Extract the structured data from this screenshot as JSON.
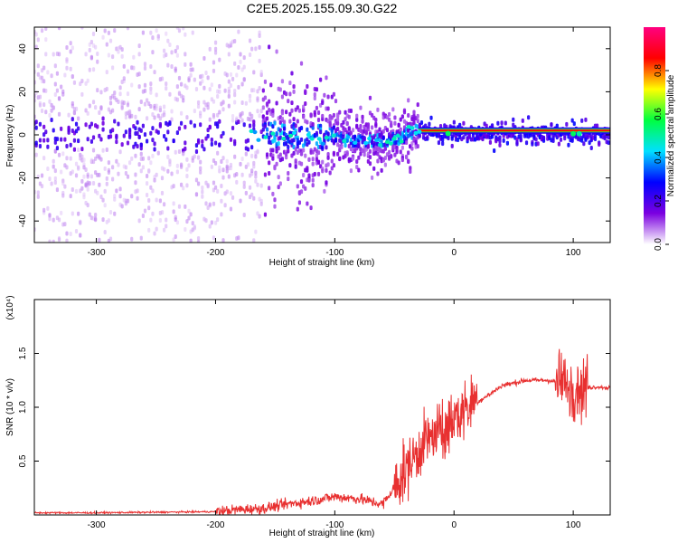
{
  "title": "C2E5.2025.155.09.30.G22",
  "colorbar": {
    "label": "Normalized spectral amplitude",
    "ticks": [
      {
        "v": 0.0,
        "label": "0.0"
      },
      {
        "v": 0.2,
        "label": "0.2"
      },
      {
        "v": 0.4,
        "label": "0.4"
      },
      {
        "v": 0.6,
        "label": "0.6"
      },
      {
        "v": 0.8,
        "label": "0.8"
      }
    ],
    "range": [
      0,
      1
    ],
    "colors": [
      "#ffffff",
      "#7b00e0",
      "#0000ff",
      "#00e0ff",
      "#00ff40",
      "#ffff00",
      "#ff0000",
      "#ff0080"
    ]
  },
  "chart_data": [
    {
      "type": "heatmap",
      "xlabel": "Height of straight line (km)",
      "ylabel": "Frequency (Hz)",
      "xlim": [
        -352,
        131
      ],
      "ylim": [
        -50,
        50
      ],
      "xticks": [
        {
          "v": -300,
          "label": "-300"
        },
        {
          "v": -200,
          "label": "-200"
        },
        {
          "v": -100,
          "label": "-100"
        },
        {
          "v": 0,
          "label": "0"
        },
        {
          "v": 100,
          "label": "100"
        }
      ],
      "yticks": [
        {
          "v": -40,
          "label": "-40"
        },
        {
          "v": -20,
          "label": "-20"
        },
        {
          "v": 0,
          "label": "0"
        },
        {
          "v": 20,
          "label": "20"
        },
        {
          "v": 40,
          "label": "40"
        }
      ],
      "ridge": [
        [
          -352,
          0
        ],
        [
          -300,
          0.5
        ],
        [
          -200,
          -1
        ],
        [
          -150,
          0
        ],
        [
          -100,
          -1.5
        ],
        [
          -80,
          -3
        ],
        [
          -50,
          -2
        ],
        [
          -30,
          2
        ],
        [
          -20,
          1
        ],
        [
          0,
          0.5
        ],
        [
          131,
          0.5
        ]
      ]
    },
    {
      "type": "line",
      "xlabel": "Height of straight line (km)",
      "ylabel": "SNR (10 * v/v)",
      "yscale_label": "(x10⁴)",
      "xlim": [
        -352,
        131
      ],
      "ylim": [
        0,
        2
      ],
      "xticks": [
        {
          "v": -300,
          "label": "-300"
        },
        {
          "v": -200,
          "label": "-200"
        },
        {
          "v": -100,
          "label": "-100"
        },
        {
          "v": 0,
          "label": "0"
        },
        {
          "v": 100,
          "label": "100"
        }
      ],
      "yticks": [
        {
          "v": 0.5,
          "label": "0.5"
        },
        {
          "v": 1.0,
          "label": "1.0"
        },
        {
          "v": 1.5,
          "label": "1.5"
        }
      ],
      "color": "#e83030",
      "series": [
        {
          "x": [
            -352,
            -300,
            -250,
            -200,
            -180,
            -160,
            -140,
            -120,
            -100,
            -80,
            -60,
            -50,
            -40,
            -30,
            -20,
            -10,
            0,
            10,
            20,
            30,
            40,
            60,
            80,
            90,
            100,
            110,
            120,
            131
          ],
          "y": [
            0.02,
            0.02,
            0.025,
            0.03,
            0.05,
            0.06,
            0.1,
            0.13,
            0.17,
            0.15,
            0.1,
            0.25,
            0.42,
            0.6,
            0.72,
            0.75,
            0.88,
            0.98,
            1.05,
            1.12,
            1.2,
            1.25,
            1.25,
            1.22,
            1.2,
            1.18,
            1.19,
            1.18
          ]
        }
      ]
    }
  ]
}
